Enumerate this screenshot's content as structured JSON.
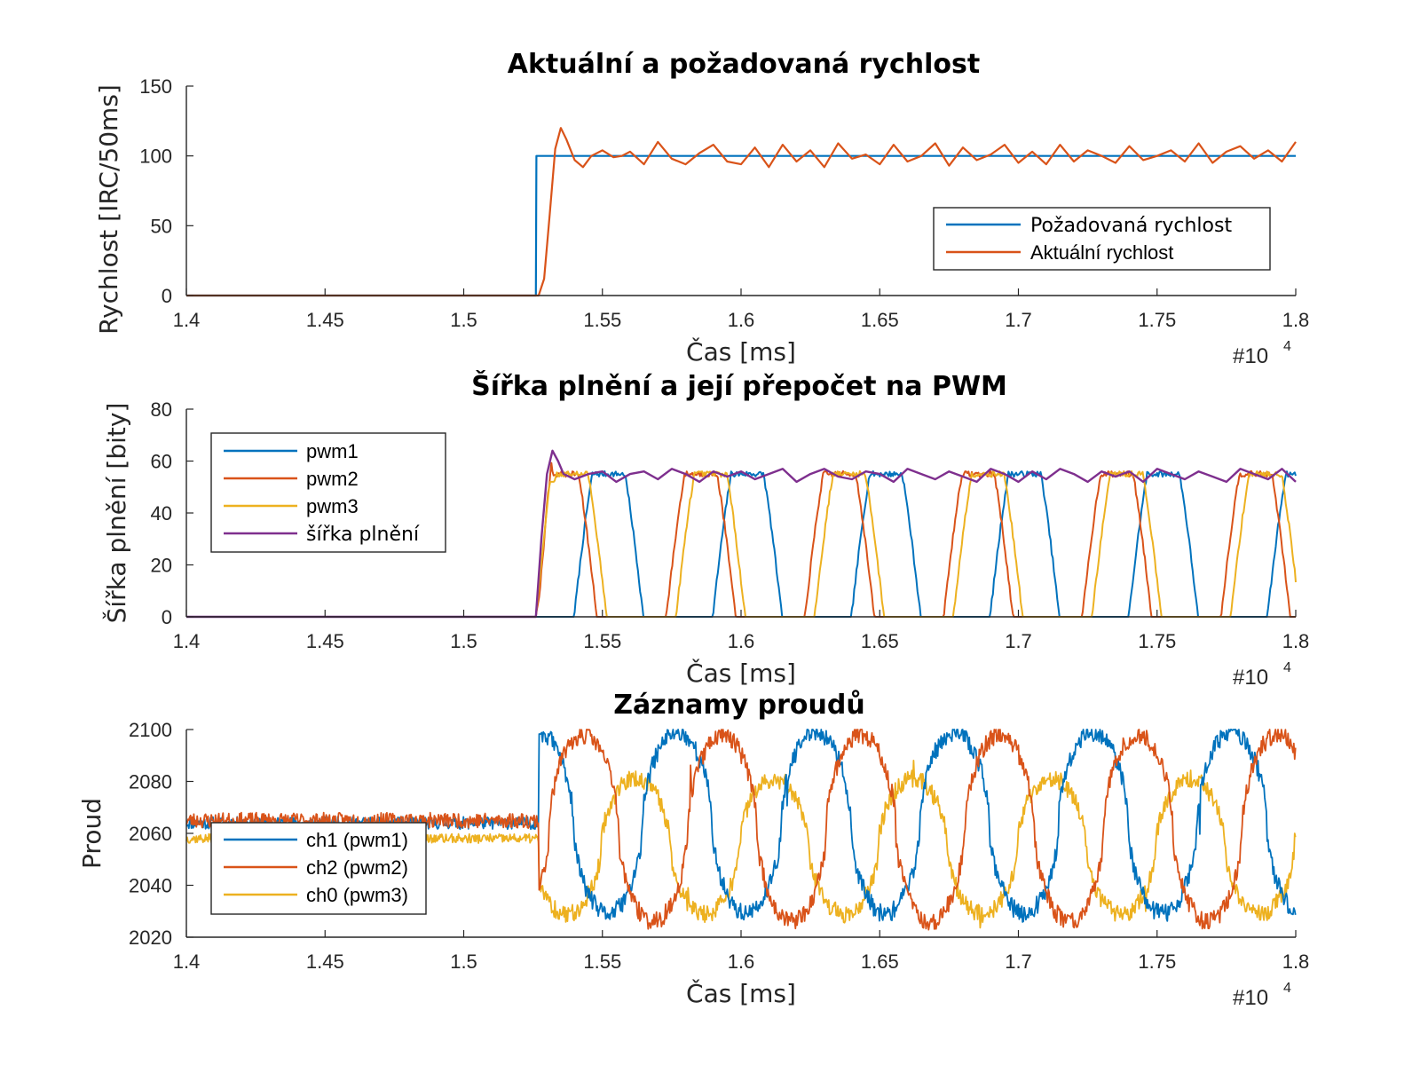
{
  "colors": {
    "blue": "#0072BD",
    "orange": "#D95319",
    "yellow": "#EDB120",
    "purple": "#7E2F8E",
    "axis": "#262626"
  },
  "chart_data": [
    {
      "type": "line",
      "title": "Aktuální a požadovaná rychlost",
      "xlabel": "Čas [ms]",
      "ylabel": "Rychlost [IRC/50ms]",
      "xlim": [
        14000,
        18000
      ],
      "ylim": [
        0,
        150
      ],
      "x_exponent_label": "#10",
      "x_exponent": "4",
      "x_ticks": [
        14000,
        14500,
        15000,
        15500,
        16000,
        16500,
        17000,
        17500,
        18000
      ],
      "x_tick_labels": [
        "1.4",
        "1.45",
        "1.5",
        "1.55",
        "1.6",
        "1.65",
        "1.7",
        "1.75",
        "1.8"
      ],
      "y_ticks": [
        0,
        50,
        100,
        150
      ],
      "y_tick_labels": [
        "0",
        "50",
        "100",
        "150"
      ],
      "legend_position": "right",
      "grid": false,
      "series": [
        {
          "name": "Požadovaná rychlost",
          "color": "blue",
          "x": [
            14000,
            15260,
            15262,
            18000
          ],
          "y": [
            0,
            0,
            100,
            100
          ]
        },
        {
          "name": "Aktuální rychlost",
          "color": "orange",
          "x": [
            14000,
            15270,
            15290,
            15310,
            15330,
            15350,
            15370,
            15400,
            15430,
            15460,
            15500,
            15540,
            15570,
            15600,
            15650,
            15700,
            15750,
            15800,
            15850,
            15900,
            15950,
            16000,
            16050,
            16100,
            16150,
            16200,
            16250,
            16300,
            16350,
            16400,
            16450,
            16500,
            16550,
            16600,
            16650,
            16700,
            16750,
            16800,
            16850,
            16900,
            16950,
            17000,
            17050,
            17100,
            17150,
            17200,
            17250,
            17300,
            17350,
            17400,
            17450,
            17500,
            17550,
            17600,
            17650,
            17700,
            17750,
            17800,
            17850,
            17900,
            17950,
            18000
          ],
          "y": [
            0,
            0,
            12,
            58,
            105,
            120,
            112,
            97,
            92,
            100,
            104,
            99,
            100,
            103,
            94,
            110,
            98,
            94,
            102,
            108,
            96,
            94,
            106,
            92,
            108,
            96,
            104,
            92,
            109,
            98,
            101,
            94,
            108,
            96,
            100,
            109,
            93,
            106,
            97,
            101,
            108,
            95,
            103,
            94,
            108,
            96,
            104,
            100,
            95,
            107,
            97,
            100,
            104,
            96,
            109,
            95,
            103,
            107,
            98,
            104,
            96,
            110
          ]
        }
      ]
    },
    {
      "type": "line",
      "title": "Šířka plnění a její přepočet na PWM",
      "xlabel": "Čas [ms]",
      "ylabel": "Šířka plnění [bity]",
      "xlim": [
        14000,
        18000
      ],
      "ylim": [
        0,
        80
      ],
      "x_exponent_label": "#10",
      "x_exponent": "4",
      "x_ticks": [
        14000,
        14500,
        15000,
        15500,
        16000,
        16500,
        17000,
        17500,
        18000
      ],
      "x_tick_labels": [
        "1.4",
        "1.45",
        "1.5",
        "1.55",
        "1.6",
        "1.65",
        "1.7",
        "1.75",
        "1.8"
      ],
      "y_ticks": [
        0,
        20,
        40,
        60,
        80
      ],
      "y_tick_labels": [
        "0",
        "20",
        "40",
        "60",
        "80"
      ],
      "legend_position": "top-left",
      "grid": false,
      "pwm_cycle_start_ms": 15260,
      "pwm_cycle_period_ms": 500,
      "series": [
        {
          "name": "pwm1",
          "color": "blue"
        },
        {
          "name": "pwm2",
          "color": "orange"
        },
        {
          "name": "pwm3",
          "color": "yellow"
        },
        {
          "name": "šířka plnění",
          "color": "purple",
          "x": [
            14000,
            15260,
            15280,
            15300,
            15320,
            15340,
            15360,
            15400,
            15450,
            15500,
            15550,
            15600,
            15650,
            15700,
            15750,
            15800,
            15850,
            15900,
            15950,
            16000,
            16050,
            16100,
            16150,
            16200,
            16250,
            16300,
            16350,
            16400,
            16450,
            16500,
            16550,
            16600,
            16650,
            16700,
            16750,
            16800,
            16850,
            16900,
            16950,
            17000,
            17050,
            17100,
            17150,
            17200,
            17250,
            17300,
            17350,
            17400,
            17450,
            17500,
            17550,
            17600,
            17650,
            17700,
            17750,
            17800,
            17850,
            17900,
            17950,
            18000
          ],
          "y": [
            0,
            0,
            30,
            55,
            64,
            60,
            55,
            53,
            55,
            56,
            52,
            55,
            56,
            53,
            57,
            55,
            52,
            56,
            54,
            56,
            53,
            55,
            57,
            52,
            55,
            57,
            54,
            53,
            56,
            55,
            52,
            57,
            55,
            53,
            56,
            54,
            52,
            57,
            55,
            52,
            56,
            53,
            57,
            55,
            52,
            56,
            54,
            56,
            52,
            57,
            55,
            53,
            56,
            54,
            52,
            57,
            55,
            53,
            57,
            52
          ]
        }
      ]
    },
    {
      "type": "line",
      "title": "Záznamy proudů",
      "xlabel": "Čas [ms]",
      "ylabel": "Proud",
      "xlim": [
        14000,
        18000
      ],
      "ylim": [
        2020,
        2100
      ],
      "x_exponent_label": "#10",
      "x_exponent": "4",
      "x_ticks": [
        14000,
        14500,
        15000,
        15500,
        16000,
        16500,
        17000,
        17500,
        18000
      ],
      "x_tick_labels": [
        "1.4",
        "1.45",
        "1.5",
        "1.55",
        "1.6",
        "1.65",
        "1.7",
        "1.75",
        "1.8"
      ],
      "y_ticks": [
        2020,
        2040,
        2060,
        2080,
        2100
      ],
      "y_tick_labels": [
        "2020",
        "2040",
        "2060",
        "2080",
        "2100"
      ],
      "legend_position": "bottom-left",
      "grid": false,
      "idle_levels": {
        "ch1 (pwm1)": 2064,
        "ch2 (pwm2)": 2065,
        "ch0 (pwm3)": 2058
      },
      "active_start_ms": 15270,
      "period_ms": 500,
      "series": [
        {
          "name": "ch1 (pwm1)",
          "color": "blue"
        },
        {
          "name": "ch2 (pwm2)",
          "color": "orange"
        },
        {
          "name": "ch0 (pwm3)",
          "color": "yellow"
        }
      ]
    }
  ]
}
